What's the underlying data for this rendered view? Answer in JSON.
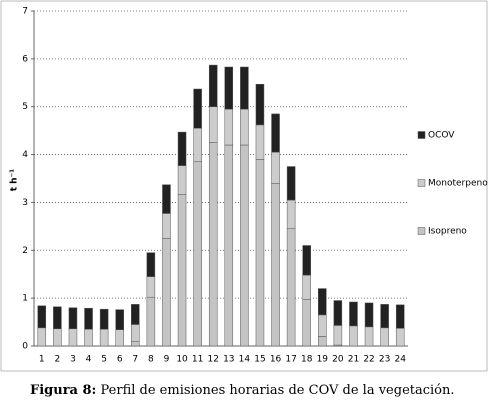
{
  "chart_data": {
    "type": "stacked_bar",
    "y_label": "t h⁻¹",
    "categories": [
      "1",
      "2",
      "3",
      "4",
      "5",
      "6",
      "7",
      "8",
      "9",
      "10",
      "11",
      "12",
      "13",
      "14",
      "15",
      "16",
      "17",
      "18",
      "19",
      "20",
      "21",
      "22",
      "23",
      "24"
    ],
    "series": [
      {
        "name": "Isopreno",
        "color": "#c4c4c4",
        "values": [
          0,
          0,
          0,
          0,
          0,
          0,
          0.1,
          1.02,
          2.25,
          3.17,
          3.85,
          4.25,
          4.2,
          4.2,
          3.9,
          3.4,
          2.45,
          0.97,
          0.2,
          0.02,
          0,
          0,
          0,
          0
        ]
      },
      {
        "name": "Monoterpenos",
        "color": "#cccccc",
        "values": [
          0.38,
          0.36,
          0.36,
          0.35,
          0.35,
          0.34,
          0.35,
          0.43,
          0.52,
          0.6,
          0.7,
          0.75,
          0.75,
          0.75,
          0.72,
          0.65,
          0.6,
          0.51,
          0.45,
          0.41,
          0.42,
          0.4,
          0.38,
          0.37
        ]
      },
      {
        "name": "OCOV",
        "color": "#222222",
        "values": [
          0.46,
          0.46,
          0.44,
          0.44,
          0.42,
          0.42,
          0.42,
          0.5,
          0.6,
          0.7,
          0.82,
          0.87,
          0.88,
          0.88,
          0.85,
          0.8,
          0.7,
          0.62,
          0.55,
          0.52,
          0.5,
          0.5,
          0.49,
          0.49
        ]
      }
    ],
    "ylim": [
      0,
      7
    ],
    "yticks": [
      0,
      1,
      2,
      3,
      4,
      5,
      6,
      7
    ],
    "grid": true,
    "legend": "right",
    "caption_label": "Figura 8:",
    "caption_text": "Perfil de emisiones horarias de COV de la vegetación."
  }
}
